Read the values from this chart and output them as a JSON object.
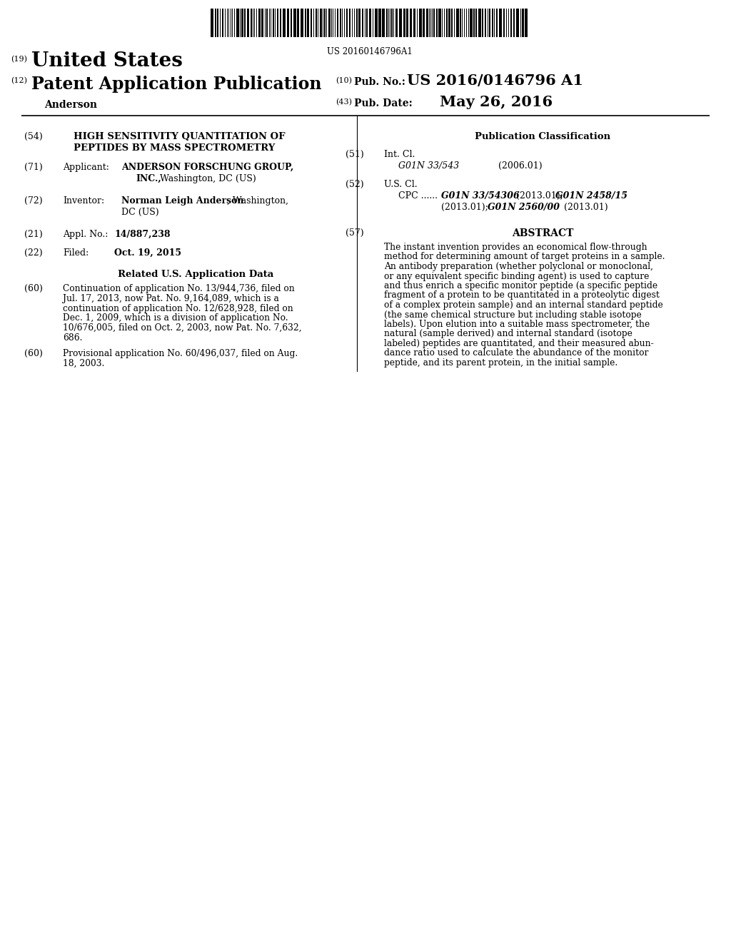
{
  "background_color": "#ffffff",
  "barcode_text": "US 20160146796A1",
  "num19_label": "(19)",
  "us_label": "United States",
  "num12_label": "(12)",
  "patent_app_pub_label": "Patent Application Publication",
  "inventor_last": "Anderson",
  "num10_label": "(10)",
  "pub_no_label": "Pub. No.:",
  "pub_no_value": "US 2016/0146796 A1",
  "num43_label": "(43)",
  "pub_date_label": "Pub. Date:",
  "pub_date_value": "May 26, 2016",
  "num54_label": "(54)",
  "title_line1": "HIGH SENSITIVITY QUANTITATION OF",
  "title_line2": "PEPTIDES BY MASS SPECTROMETRY",
  "pub_class_header": "Publication Classification",
  "num71_label": "(71)",
  "applicant_label": "Applicant:",
  "applicant_bold": "ANDERSON FORSCHUNG GROUP,",
  "applicant_bold2": "INC.,",
  "applicant_rest2": " Washington, DC (US)",
  "num72_label": "(72)",
  "inventor_label": "Inventor:",
  "inventor_bold": "Norman Leigh Anderson",
  "inventor_rest": ", Washington,",
  "inventor_rest2": "DC (US)",
  "num51_label": "(51)",
  "int_cl_label": "Int. Cl.",
  "int_cl_class": "G01N 33/543",
  "int_cl_date": "(2006.01)",
  "num52_label": "(52)",
  "us_cl_label": "U.S. Cl.",
  "cpc_label": "CPC ......",
  "cpc_class1": "G01N 33/54306",
  "cpc_mid1": "(2013.01);",
  "cpc_class2": "G01N 2458/15",
  "cpc_line2_start": "(2013.01);",
  "cpc_class3": "G01N 2560/00",
  "cpc_end": "(2013.01)",
  "num21_label": "(21)",
  "appl_no_label": "Appl. No.:",
  "appl_no_value": "14/887,238",
  "num22_label": "(22)",
  "filed_label": "Filed:",
  "filed_value": "Oct. 19, 2015",
  "rel_data_header": "Related U.S. Application Data",
  "num57_label": "(57)",
  "abstract_header": "ABSTRACT",
  "cont60_lines": [
    "Continuation of application No. 13/944,736, filed on",
    "Jul. 17, 2013, now Pat. No. 9,164,089, which is a",
    "continuation of application No. 12/628,928, filed on",
    "Dec. 1, 2009, which is a division of application No.",
    "10/676,005, filed on Oct. 2, 2003, now Pat. No. 7,632,",
    "686."
  ],
  "prov60_lines": [
    "Provisional application No. 60/496,037, filed on Aug.",
    "18, 2003."
  ],
  "abstract_lines": [
    "The instant invention provides an economical flow-through",
    "method for determining amount of target proteins in a sample.",
    "An antibody preparation (whether polyclonal or monoclonal,",
    "or any equivalent specific binding agent) is used to capture",
    "and thus enrich a specific monitor peptide (a specific peptide",
    "fragment of a protein to be quantitated in a proteolytic digest",
    "of a complex protein sample) and an internal standard peptide",
    "(the same chemical structure but including stable isotope",
    "labels). Upon elution into a suitable mass spectrometer, the",
    "natural (sample derived) and internal standard (isotope",
    "labeled) peptides are quantitated, and their measured abun-",
    "dance ratio used to calculate the abundance of the monitor",
    "peptide, and its parent protein, in the initial sample."
  ]
}
